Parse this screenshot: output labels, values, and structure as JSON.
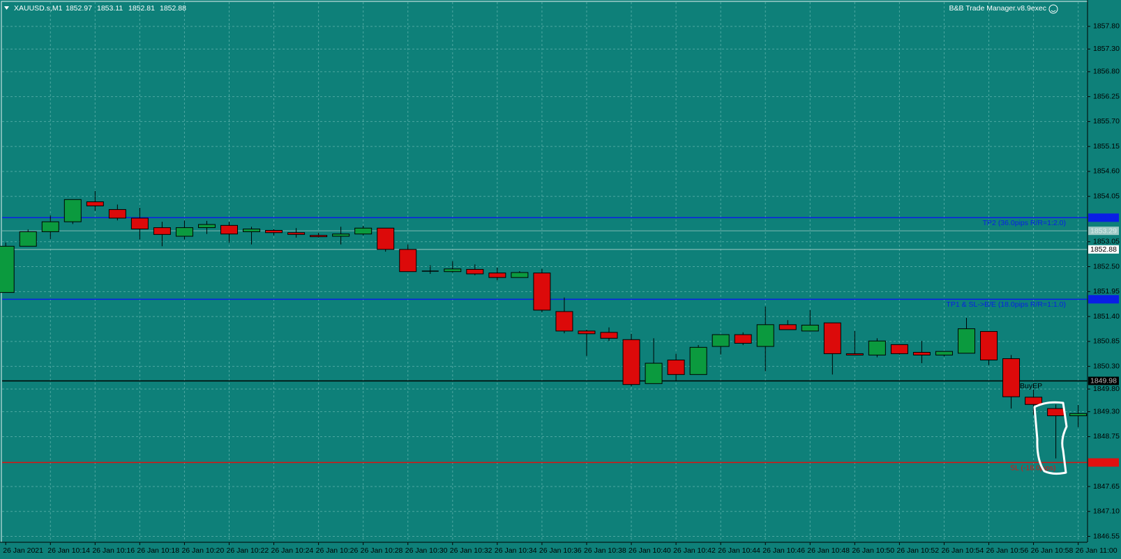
{
  "chart_data": {
    "type": "candlestick",
    "symbol": "XAUUSD.s,M1",
    "quote": [
      1852.97,
      1853.11,
      1852.81,
      1852.88
    ],
    "indicator": "B&B Trade Manager.v8.9exec",
    "categories": [
      "26 Jan 2021",
      null,
      "26 Jan 10:14",
      null,
      "26 Jan 10:16",
      null,
      "26 Jan 10:18",
      null,
      "26 Jan 10:20",
      null,
      "26 Jan 10:22",
      null,
      "26 Jan 10:24",
      null,
      "26 Jan 10:26",
      null,
      "26 Jan 10:28",
      null,
      "26 Jan 10:30",
      null,
      "26 Jan 10:32",
      null,
      "26 Jan 10:34",
      null,
      "26 Jan 10:36",
      null,
      "26 Jan 10:38",
      null,
      "26 Jan 10:40",
      null,
      "26 Jan 10:42",
      null,
      "26 Jan 10:44",
      null,
      "26 Jan 10:46",
      null,
      "26 Jan 10:48",
      null,
      "26 Jan 10:50",
      null,
      "26 Jan 10:52",
      null,
      "26 Jan 10:54",
      null,
      "26 Jan 10:56",
      null,
      "26 Jan 10:58",
      null,
      "26 Jan 11:00"
    ],
    "open": [
      1851.93,
      1852.95,
      1853.27,
      1853.49,
      1853.93,
      1853.76,
      1853.57,
      1853.36,
      1853.17,
      1853.36,
      1853.41,
      1853.27,
      1853.3,
      1853.25,
      1853.19,
      1853.17,
      1853.22,
      1853.35,
      1852.88,
      1852.4,
      1852.39,
      1852.44,
      1852.36,
      1852.26,
      1852.36,
      1851.51,
      1851.08,
      1851.05,
      1850.89,
      1849.92,
      1850.44,
      1850.12,
      1850.74,
      1851.0,
      1850.74,
      1851.22,
      1851.08,
      1851.26,
      1850.58,
      1850.55,
      1850.78,
      1850.61,
      1850.55,
      1850.59,
      1851.07,
      1850.47,
      1849.62,
      1849.37,
      1849.21
    ],
    "high": [
      1853.03,
      1853.32,
      1853.63,
      1853.98,
      1854.17,
      1853.87,
      1853.8,
      1853.49,
      1853.52,
      1853.51,
      1853.49,
      1853.38,
      1853.33,
      1853.35,
      1853.25,
      1853.38,
      1853.4,
      1853.35,
      1852.99,
      1852.53,
      1852.62,
      1852.55,
      1852.48,
      1852.4,
      1852.45,
      1851.82,
      1851.11,
      1851.16,
      1851.02,
      1850.92,
      1850.58,
      1850.77,
      1851.0,
      1851.05,
      1851.62,
      1851.32,
      1851.54,
      1851.26,
      1851.08,
      1850.92,
      1850.78,
      1850.86,
      1850.64,
      1851.37,
      1851.07,
      1850.55,
      1849.79,
      1849.46,
      1849.45
    ],
    "low": [
      1851.93,
      1852.95,
      1853.11,
      1853.44,
      1853.73,
      1853.52,
      1853.1,
      1852.95,
      1853.1,
      1853.22,
      1853.03,
      1852.99,
      1853.19,
      1853.14,
      1853.14,
      1852.99,
      1853.19,
      1852.83,
      1852.39,
      1852.34,
      1852.37,
      1852.31,
      1852.2,
      1852.26,
      1851.49,
      1851.03,
      1850.53,
      1850.86,
      1849.86,
      1849.92,
      1849.98,
      1850.12,
      1850.56,
      1850.77,
      1850.19,
      1851.11,
      1851.08,
      1850.12,
      1850.55,
      1850.5,
      1850.56,
      1850.37,
      1850.52,
      1850.59,
      1850.33,
      1849.37,
      1849.23,
      1848.27,
      1848.96
    ],
    "close": [
      1852.95,
      1853.27,
      1853.49,
      1853.98,
      1853.84,
      1853.57,
      1853.33,
      1853.21,
      1853.36,
      1853.43,
      1853.22,
      1853.33,
      1853.25,
      1853.21,
      1853.16,
      1853.22,
      1853.35,
      1852.88,
      1852.39,
      1852.4,
      1852.45,
      1852.34,
      1852.26,
      1852.37,
      1851.54,
      1851.08,
      1851.02,
      1850.92,
      1849.9,
      1850.37,
      1850.12,
      1850.72,
      1851.0,
      1850.81,
      1851.22,
      1851.11,
      1851.21,
      1850.58,
      1850.55,
      1850.86,
      1850.58,
      1850.55,
      1850.63,
      1851.13,
      1850.44,
      1849.63,
      1849.46,
      1849.21,
      1849.26
    ],
    "up_color": "#0b9a3e",
    "down_color": "#dc0a0a",
    "doji_color": "#000000",
    "ylim": [
      1846.42,
      1858.32
    ],
    "yticks": [
      {
        "value": 1857.8,
        "label": "1857.80"
      },
      {
        "value": 1857.3,
        "label": "1857.30"
      },
      {
        "value": 1856.8,
        "label": "1856.80"
      },
      1856.25,
      {
        "value": 1855.7,
        "label": "1855.70"
      },
      1855.15,
      {
        "value": 1854.6,
        "label": "1854.60"
      },
      1854.05,
      1853.05,
      {
        "value": 1852.5,
        "label": "1852.50"
      },
      1851.95,
      {
        "value": 1851.4,
        "label": "1851.40"
      },
      1850.85,
      {
        "value": 1850.3,
        "label": "1850.30"
      },
      {
        "value": 1849.8,
        "label": "1849.80"
      },
      {
        "value": 1849.3,
        "label": "1849.30"
      },
      1848.75,
      1847.65,
      {
        "value": 1847.1,
        "label": "1847.10"
      },
      1846.55
    ],
    "grid": true,
    "levels": [
      {
        "name": "TP2 (36.0pips R/R=1:2.0)",
        "value": 1853.58,
        "color": "#0a1ee6",
        "tag_color": "#0a1ee6",
        "tag_text_color": "#0a1ee6"
      },
      {
        "value": 1853.29,
        "color": "#7fb7b2",
        "tag_color": "#9fc9c5",
        "tag_text_color": "#d8ecea"
      },
      {
        "value": 1852.88,
        "color": "#9fc9c5",
        "tag_color": "#ffffff",
        "tag_text_color": "#000000"
      },
      {
        "name": "TP1 & SL->B/E (18.0pips R/R=1:1.0)",
        "value": 1851.78,
        "color": "#0a1ee6",
        "tag_color": "#0a1ee6",
        "tag_text_color": "#0a1ee6"
      },
      {
        "name": "BuyEP",
        "value": 1849.98,
        "color": "#000000",
        "tag_color": "#000000",
        "tag_text_color": "#bbbbbb"
      },
      {
        "name": "SL (-18.0pips)",
        "value": 1848.18,
        "color": "#e01010",
        "tag_color": "#e01010",
        "tag_text_color": "#e01010"
      }
    ]
  }
}
